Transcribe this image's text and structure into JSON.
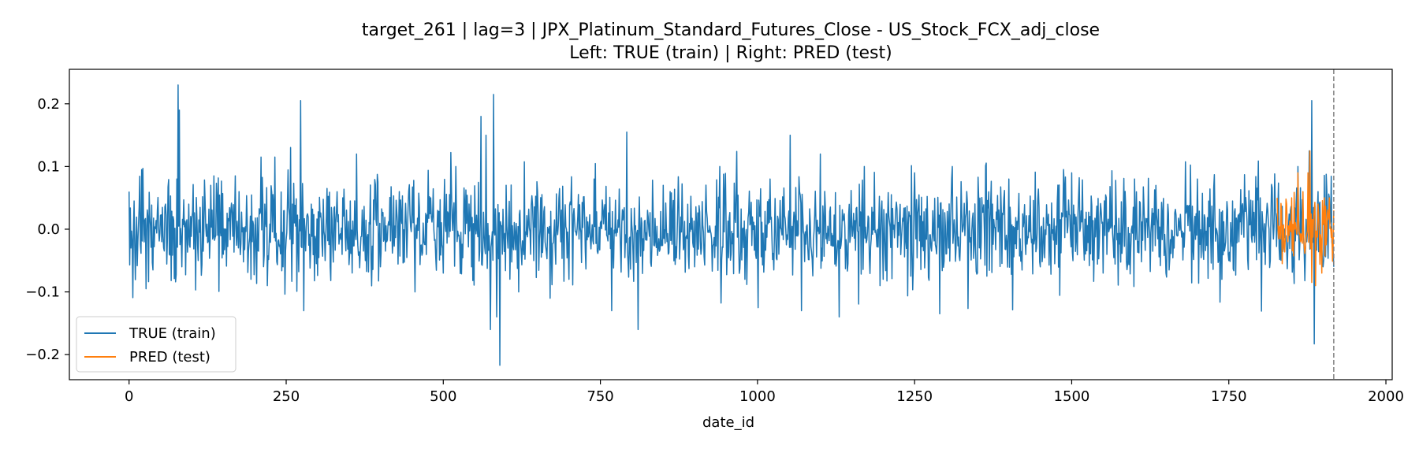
{
  "chart_data": {
    "type": "line",
    "title": "target_261 | lag=3 | JPX_Platinum_Standard_Futures_Close - US_Stock_FCX_adj_close",
    "subtitle": "Left: TRUE (train) | Right: PRED (test)",
    "xlabel": "date_id",
    "ylabel": "",
    "xlim": [
      -95,
      2010
    ],
    "ylim": [
      -0.24,
      0.255
    ],
    "x_ticks": [
      0,
      250,
      500,
      750,
      1000,
      1250,
      1500,
      1750,
      2000
    ],
    "x_tick_labels": [
      "0",
      "250",
      "500",
      "750",
      "1000",
      "1250",
      "1500",
      "1750",
      "2000"
    ],
    "y_ticks": [
      -0.2,
      -0.1,
      0.0,
      0.1,
      0.2
    ],
    "y_tick_labels": [
      "−0.2",
      "−0.1",
      "0.0",
      "0.1",
      "0.2"
    ],
    "grid": false,
    "legend_position": "lower-left",
    "split_line": {
      "x": 1917,
      "style": "dashed",
      "color": "#808080"
    },
    "series": [
      {
        "name": "TRUE (train)",
        "color": "#1f77b4",
        "x_start": 0,
        "x_end": 1917,
        "approx_std": 0.047,
        "keypoints": [
          [
            0,
            0.06
          ],
          [
            3,
            -0.03
          ],
          [
            8,
            0.045
          ],
          [
            14,
            -0.02
          ],
          [
            20,
            0.095
          ],
          [
            22,
            0.097
          ],
          [
            27,
            -0.095
          ],
          [
            33,
            0.02
          ],
          [
            38,
            -0.065
          ],
          [
            45,
            0.03
          ],
          [
            52,
            -0.02
          ],
          [
            58,
            0.04
          ],
          [
            64,
            -0.04
          ],
          [
            70,
            0.02
          ],
          [
            76,
            0.08
          ],
          [
            78,
            0.23
          ],
          [
            80,
            0.19
          ],
          [
            84,
            -0.06
          ],
          [
            95,
            0.04
          ],
          [
            110,
            -0.05
          ],
          [
            130,
            0.07
          ],
          [
            150,
            -0.04
          ],
          [
            175,
            0.06
          ],
          [
            200,
            -0.03
          ],
          [
            210,
            0.115
          ],
          [
            220,
            -0.09
          ],
          [
            232,
            0.115
          ],
          [
            245,
            -0.06
          ],
          [
            260,
            0.04
          ],
          [
            273,
            0.205
          ],
          [
            278,
            -0.13
          ],
          [
            290,
            0.04
          ],
          [
            320,
            -0.06
          ],
          [
            340,
            0.05
          ],
          [
            362,
            0.12
          ],
          [
            400,
            -0.06
          ],
          [
            430,
            0.06
          ],
          [
            455,
            -0.1
          ],
          [
            480,
            0.05
          ],
          [
            500,
            -0.07
          ],
          [
            520,
            0.1
          ],
          [
            545,
            -0.06
          ],
          [
            560,
            0.18
          ],
          [
            568,
            0.15
          ],
          [
            575,
            -0.16
          ],
          [
            580,
            0.215
          ],
          [
            585,
            -0.14
          ],
          [
            590,
            -0.217
          ],
          [
            600,
            0.07
          ],
          [
            620,
            -0.1
          ],
          [
            650,
            0.06
          ],
          [
            700,
            -0.08
          ],
          [
            740,
            0.08
          ],
          [
            768,
            -0.13
          ],
          [
            792,
            0.155
          ],
          [
            810,
            -0.16
          ],
          [
            850,
            0.07
          ],
          [
            900,
            -0.06
          ],
          [
            940,
            0.1
          ],
          [
            980,
            -0.08
          ],
          [
            1020,
            0.08
          ],
          [
            1052,
            0.15
          ],
          [
            1070,
            -0.13
          ],
          [
            1100,
            0.12
          ],
          [
            1130,
            -0.14
          ],
          [
            1170,
            0.1
          ],
          [
            1200,
            -0.08
          ],
          [
            1250,
            0.09
          ],
          [
            1290,
            -0.135
          ],
          [
            1310,
            0.1
          ],
          [
            1350,
            -0.07
          ],
          [
            1400,
            0.08
          ],
          [
            1450,
            -0.06
          ],
          [
            1500,
            0.09
          ],
          [
            1550,
            -0.07
          ],
          [
            1600,
            0.08
          ],
          [
            1650,
            -0.07
          ],
          [
            1700,
            0.08
          ],
          [
            1750,
            -0.05
          ],
          [
            1800,
            0.05
          ],
          [
            1830,
            -0.03
          ],
          [
            1860,
            0.1
          ],
          [
            1870,
            -0.04
          ],
          [
            1878,
            0.125
          ],
          [
            1882,
            0.205
          ],
          [
            1886,
            -0.183
          ],
          [
            1892,
            0.06
          ],
          [
            1900,
            -0.06
          ],
          [
            1910,
            0.05
          ],
          [
            1917,
            -0.06
          ]
        ]
      },
      {
        "name": "PRED (test)",
        "color": "#ff7f0e",
        "x_start": 1827,
        "x_end": 1917,
        "approx_std": 0.03,
        "keypoints": [
          [
            1827,
            0.05
          ],
          [
            1830,
            0.005
          ],
          [
            1834,
            0.03
          ],
          [
            1838,
            -0.03
          ],
          [
            1842,
            0.04
          ],
          [
            1846,
            -0.01
          ],
          [
            1850,
            0.05
          ],
          [
            1855,
            0.0
          ],
          [
            1860,
            0.09
          ],
          [
            1864,
            -0.02
          ],
          [
            1868,
            0.06
          ],
          [
            1872,
            -0.03
          ],
          [
            1876,
            0.09
          ],
          [
            1879,
            0.125
          ],
          [
            1882,
            -0.085
          ],
          [
            1885,
            0.02
          ],
          [
            1888,
            -0.09
          ],
          [
            1892,
            0.04
          ],
          [
            1897,
            -0.02
          ],
          [
            1902,
            0.05
          ],
          [
            1906,
            -0.01
          ],
          [
            1910,
            0.05
          ],
          [
            1914,
            0.0
          ],
          [
            1917,
            0.03
          ]
        ]
      }
    ]
  }
}
